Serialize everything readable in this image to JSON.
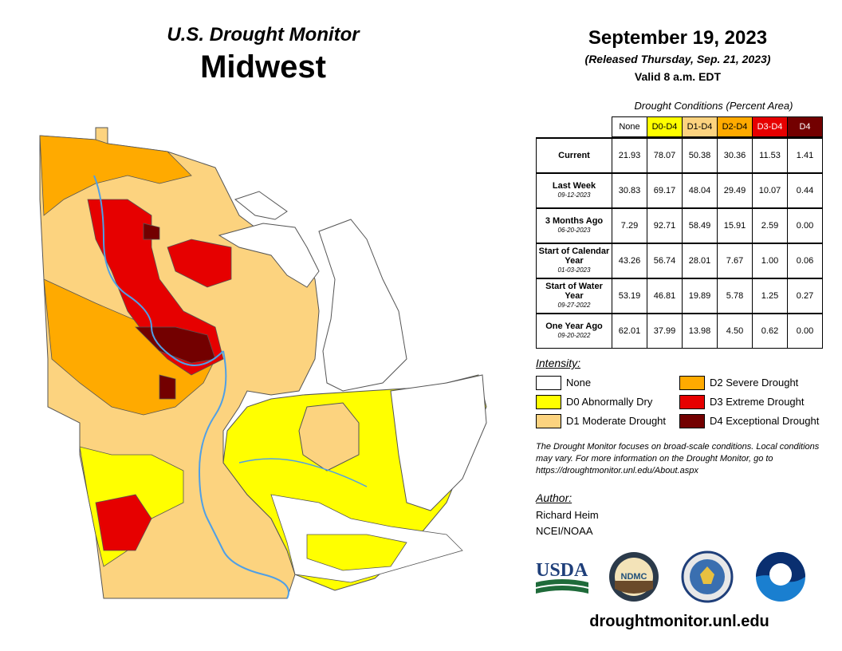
{
  "header": {
    "title": "U.S. Drought Monitor",
    "region": "Midwest",
    "date": "September 19, 2023",
    "released": "(Released Thursday, Sep. 21, 2023)",
    "valid": "Valid 8 a.m. EDT"
  },
  "conditions": {
    "caption": "Drought Conditions (Percent Area)",
    "columns": [
      "None",
      "D0-D4",
      "D1-D4",
      "D2-D4",
      "D3-D4",
      "D4"
    ],
    "column_colors": [
      "#ffffff",
      "#ffff00",
      "#fcd37f",
      "#ffaa00",
      "#e60000",
      "#730000"
    ],
    "rows": [
      {
        "label": "Current",
        "date": "",
        "values": [
          "21.93",
          "78.07",
          "50.38",
          "30.36",
          "11.53",
          "1.41"
        ]
      },
      {
        "label": "Last Week",
        "date": "09-12-2023",
        "values": [
          "30.83",
          "69.17",
          "48.04",
          "29.49",
          "10.07",
          "0.44"
        ]
      },
      {
        "label": "3 Months Ago",
        "date": "06-20-2023",
        "values": [
          "7.29",
          "92.71",
          "58.49",
          "15.91",
          "2.59",
          "0.00"
        ]
      },
      {
        "label": "Start of Calendar Year",
        "date": "01-03-2023",
        "values": [
          "43.26",
          "56.74",
          "28.01",
          "7.67",
          "1.00",
          "0.06"
        ]
      },
      {
        "label": "Start of Water Year",
        "date": "09-27-2022",
        "values": [
          "53.19",
          "46.81",
          "19.89",
          "5.78",
          "1.25",
          "0.27"
        ]
      },
      {
        "label": "One Year Ago",
        "date": "09-20-2022",
        "values": [
          "62.01",
          "37.99",
          "13.98",
          "4.50",
          "0.62",
          "0.00"
        ]
      }
    ]
  },
  "legend": {
    "title": "Intensity:",
    "items": [
      {
        "label": "None",
        "color": "#ffffff"
      },
      {
        "label": "D0 Abnormally Dry",
        "color": "#ffff00"
      },
      {
        "label": "D1 Moderate Drought",
        "color": "#fcd37f"
      },
      {
        "label": "D2 Severe Drought",
        "color": "#ffaa00"
      },
      {
        "label": "D3 Extreme Drought",
        "color": "#e60000"
      },
      {
        "label": "D4 Exceptional Drought",
        "color": "#730000"
      }
    ]
  },
  "note": "The Drought Monitor focuses on broad-scale conditions. Local conditions may vary. For more information on the Drought Monitor, go to https://droughtmonitor.unl.edu/About.aspx",
  "author": {
    "title": "Author:",
    "name": "Richard Heim",
    "org": "NCEI/NOAA"
  },
  "logos": {
    "usda": "USDA",
    "ndmc": "NDMC",
    "icons": [
      "usda-logo-icon",
      "ndmc-logo-icon",
      "commerce-seal-icon",
      "noaa-logo-icon"
    ]
  },
  "website": "droughtmonitor.unl.edu"
}
